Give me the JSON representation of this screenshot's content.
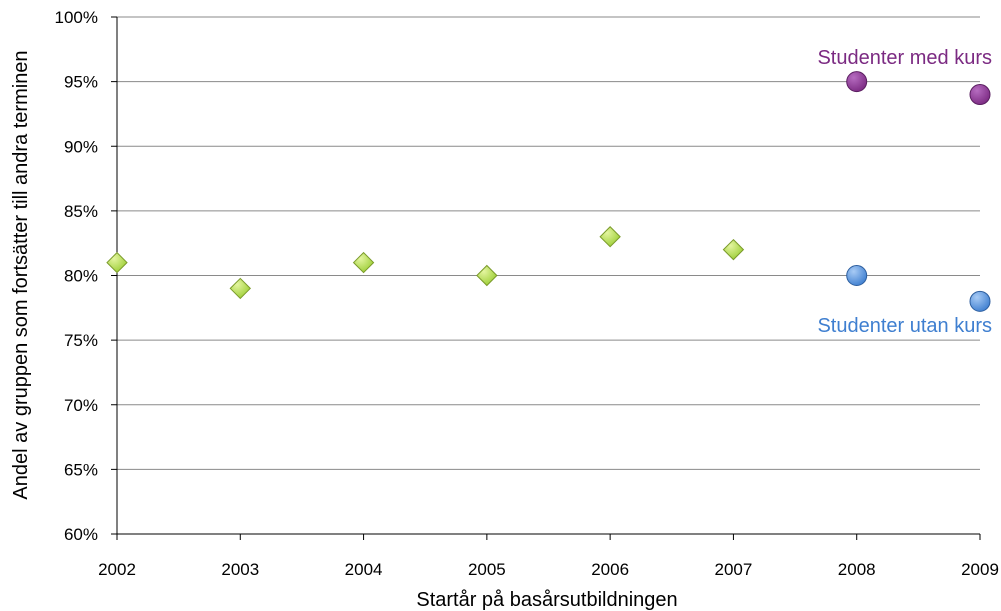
{
  "chart_data": {
    "type": "scatter",
    "title": "",
    "xlabel": "Startår på basårsutbildningen",
    "ylabel": "Andel av gruppen som fortsätter till andra terminen",
    "x_ticks": [
      "2002",
      "2003",
      "2004",
      "2005",
      "2006",
      "2007",
      "2008",
      "2009"
    ],
    "y_ticks": [
      "60%",
      "65%",
      "70%",
      "75%",
      "80%",
      "85%",
      "90%",
      "95%",
      "100%"
    ],
    "xlim": [
      2002,
      2009
    ],
    "ylim": [
      60,
      100
    ],
    "grid": true,
    "series": [
      {
        "marker": "diamond",
        "color": "#9ACD32",
        "x": [
          2002,
          2003,
          2004,
          2005,
          2006,
          2007
        ],
        "y": [
          81,
          79,
          81,
          80,
          83,
          82
        ]
      },
      {
        "name": "Studenter med kurs",
        "marker": "circle",
        "color": "#7B2A82",
        "x": [
          2008,
          2009
        ],
        "y": [
          95,
          94
        ]
      },
      {
        "name": "Studenter utan kurs",
        "marker": "circle",
        "color": "#3F7FD0",
        "x": [
          2008,
          2009
        ],
        "y": [
          80,
          78
        ]
      }
    ]
  }
}
